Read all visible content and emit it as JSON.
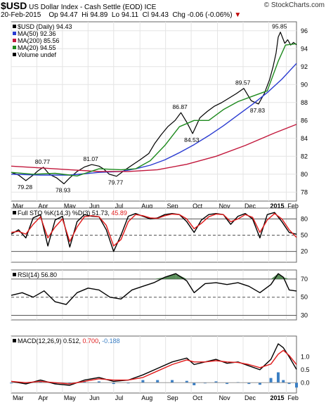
{
  "header": {
    "symbol": "$USD",
    "title": "US Dollar Index - Cash Settle (EOD)",
    "exchange": "ICE",
    "date": "20-Feb-2015",
    "op": "Op 94.47",
    "hi": "Hi 94.89",
    "lo": "Lo 94.11",
    "cl": "Cl 94.43",
    "chg": "Chg -0.06 (-0.06%)",
    "watermark": "© StockCharts.com"
  },
  "colors": {
    "price": "#000000",
    "ma50": "#2a3bd1",
    "ma200": "#c2183c",
    "ma20": "#1e8a1e",
    "sto_k": "#000000",
    "sto_d": "#e01a1a",
    "rsi": "#000000",
    "rsi_fill": "#3e7b3e",
    "macd": "#000000",
    "signal": "#e01a1a",
    "hist": "#3b7fc4",
    "arrow_down": "#c00000"
  },
  "chart_data": [
    {
      "type": "line",
      "panel": "price",
      "legend": [
        "$USD (Daily) 94.43",
        "MA(50) 92.36",
        "MA(200) 85.56",
        "MA(20) 94.55",
        "Volume undef"
      ],
      "x_ticks": [
        "Mar",
        "Apr",
        "May",
        "Jun",
        "Jul",
        "Aug",
        "Sep",
        "Oct",
        "Nov",
        "Dec",
        "2015",
        "Feb"
      ],
      "ylim": [
        77,
        97
      ],
      "y_ticks": [
        78,
        80,
        82,
        84,
        86,
        88,
        90,
        92,
        94,
        96
      ],
      "grid": true,
      "series": [
        {
          "name": "$USD (Daily)",
          "x": [
            0,
            10,
            20,
            30,
            37,
            44,
            52,
            62,
            72,
            80,
            90,
            100,
            110,
            120,
            126,
            134,
            144,
            156,
            165,
            176,
            188,
            196,
            205,
            214,
            224,
            232,
            240,
            248,
            258,
            268,
            278,
            288,
            298,
            308,
            318,
            328,
            338,
            346,
            353,
            358,
            362,
            365,
            368,
            374,
            378,
            382,
            386,
            390
          ],
          "y": [
            80.2,
            79.9,
            79.28,
            79.9,
            80.4,
            80.77,
            80.0,
            79.6,
            78.93,
            79.6,
            80.3,
            80.8,
            81.07,
            80.9,
            80.6,
            80.0,
            79.77,
            80.5,
            81.0,
            81.6,
            82.3,
            83.4,
            84.4,
            85.3,
            86.0,
            86.87,
            85.8,
            84.53,
            86.3,
            87.0,
            87.6,
            88.0,
            88.5,
            89.0,
            89.57,
            88.2,
            87.83,
            89.0,
            90.5,
            92.0,
            93.5,
            95.3,
            95.85,
            94.6,
            95.0,
            94.4,
            94.7,
            94.43
          ]
        },
        {
          "name": "MA(50)",
          "x": [
            0,
            40,
            80,
            120,
            150,
            170,
            190,
            210,
            230,
            250,
            270,
            290,
            310,
            330,
            350,
            370,
            390
          ],
          "y": [
            80.0,
            79.9,
            79.9,
            80.2,
            80.3,
            80.6,
            81.0,
            81.6,
            82.4,
            83.3,
            84.3,
            85.4,
            86.6,
            87.8,
            89.1,
            90.6,
            92.36
          ]
        },
        {
          "name": "MA(200)",
          "x": [
            0,
            40,
            80,
            120,
            160,
            200,
            240,
            280,
            320,
            360,
            390
          ],
          "y": [
            80.9,
            80.7,
            80.5,
            80.3,
            80.3,
            80.5,
            81.1,
            82.0,
            83.2,
            84.6,
            85.56
          ]
        },
        {
          "name": "MA(20)",
          "x": [
            0,
            30,
            60,
            90,
            120,
            150,
            170,
            190,
            210,
            230,
            250,
            270,
            290,
            310,
            330,
            350,
            365,
            375,
            390
          ],
          "y": [
            80.2,
            80.0,
            80.1,
            79.8,
            80.6,
            80.5,
            80.6,
            81.5,
            83.2,
            85.3,
            86.0,
            86.0,
            87.2,
            88.1,
            88.7,
            89.3,
            92.6,
            94.4,
            94.55
          ]
        }
      ],
      "annotations": [
        {
          "text": "80.77",
          "x": 44,
          "y": 80.77
        },
        {
          "text": "79.28",
          "x": 20,
          "y": 79.28
        },
        {
          "text": "78.93",
          "x": 72,
          "y": 78.93
        },
        {
          "text": "81.07",
          "x": 110,
          "y": 81.07
        },
        {
          "text": "79.77",
          "x": 144,
          "y": 79.77
        },
        {
          "text": "86.87",
          "x": 232,
          "y": 86.87
        },
        {
          "text": "84.53",
          "x": 248,
          "y": 84.53
        },
        {
          "text": "89.57",
          "x": 318,
          "y": 89.57
        },
        {
          "text": "87.83",
          "x": 338,
          "y": 87.83
        },
        {
          "text": "95.85",
          "x": 368,
          "y": 95.85
        }
      ]
    },
    {
      "type": "line",
      "panel": "sto",
      "legend": [
        "Full STO %K(14,3) %D(3) 51.73, 45.89"
      ],
      "series_labels": [
        "%K(14,3)",
        "%D(3)"
      ],
      "ylim": [
        0,
        100
      ],
      "y_ticks": [
        20,
        50,
        80
      ],
      "reference_lines": [
        20,
        50,
        80
      ],
      "series": [
        {
          "name": "%K",
          "x": [
            0,
            10,
            20,
            30,
            40,
            50,
            60,
            70,
            80,
            90,
            100,
            110,
            120,
            130,
            140,
            150,
            160,
            170,
            180,
            190,
            200,
            210,
            220,
            230,
            240,
            250,
            260,
            270,
            280,
            290,
            300,
            310,
            320,
            330,
            340,
            350,
            360,
            370,
            380,
            390
          ],
          "y": [
            52,
            60,
            45,
            82,
            88,
            30,
            78,
            85,
            28,
            75,
            88,
            85,
            84,
            60,
            20,
            50,
            85,
            90,
            85,
            80,
            82,
            88,
            90,
            88,
            75,
            55,
            78,
            88,
            90,
            88,
            70,
            85,
            90,
            80,
            45,
            88,
            92,
            75,
            55,
            51.73
          ]
        },
        {
          "name": "%D",
          "x": [
            0,
            10,
            20,
            30,
            40,
            50,
            60,
            70,
            80,
            90,
            100,
            110,
            120,
            130,
            140,
            150,
            160,
            170,
            180,
            190,
            200,
            210,
            220,
            230,
            240,
            250,
            260,
            270,
            280,
            290,
            300,
            310,
            320,
            330,
            340,
            350,
            360,
            370,
            380,
            390
          ],
          "y": [
            55,
            57,
            52,
            70,
            84,
            45,
            65,
            80,
            38,
            65,
            84,
            86,
            84,
            68,
            30,
            42,
            75,
            88,
            86,
            82,
            81,
            86,
            89,
            88,
            80,
            62,
            72,
            84,
            89,
            88,
            75,
            80,
            88,
            83,
            55,
            78,
            90,
            80,
            60,
            45.89
          ]
        }
      ]
    },
    {
      "type": "line",
      "panel": "rsi",
      "legend": [
        "RSI(14) 56.80"
      ],
      "ylim": [
        25,
        80
      ],
      "y_ticks": [
        30,
        50,
        70
      ],
      "reference_lines": [
        30,
        50,
        70
      ],
      "series": [
        {
          "name": "RSI(14)",
          "x": [
            0,
            15,
            30,
            45,
            60,
            75,
            90,
            105,
            120,
            135,
            150,
            165,
            180,
            195,
            210,
            225,
            240,
            250,
            265,
            280,
            295,
            310,
            325,
            340,
            355,
            365,
            372,
            380,
            390
          ],
          "y": [
            52,
            55,
            50,
            57,
            45,
            42,
            55,
            60,
            58,
            50,
            48,
            58,
            62,
            66,
            72,
            76,
            68,
            55,
            65,
            66,
            64,
            66,
            62,
            55,
            64,
            76,
            72,
            58,
            56.8
          ]
        }
      ]
    },
    {
      "type": "line",
      "panel": "macd",
      "legend": [
        "MACD(12,26,9) 0.512, 0.700, -0.188"
      ],
      "ylim": [
        -0.4,
        1.8
      ],
      "y_ticks": [
        0.0,
        0.5,
        1.0
      ],
      "series": [
        {
          "name": "MACD",
          "x": [
            0,
            20,
            40,
            60,
            80,
            100,
            120,
            140,
            160,
            180,
            200,
            220,
            240,
            250,
            265,
            280,
            295,
            310,
            325,
            340,
            355,
            365,
            372,
            380,
            390
          ],
          "y": [
            0.05,
            -0.05,
            0.1,
            -0.05,
            -0.1,
            0.1,
            0.2,
            0.05,
            0.1,
            0.3,
            0.55,
            0.8,
            0.95,
            0.7,
            0.8,
            0.9,
            0.75,
            0.8,
            0.65,
            0.5,
            0.9,
            1.5,
            1.35,
            1.0,
            0.512
          ]
        },
        {
          "name": "Signal",
          "x": [
            0,
            20,
            40,
            60,
            80,
            100,
            120,
            140,
            160,
            180,
            200,
            220,
            240,
            250,
            265,
            280,
            295,
            310,
            325,
            340,
            355,
            365,
            372,
            380,
            390
          ],
          "y": [
            0.05,
            0.0,
            0.05,
            0.0,
            -0.05,
            0.05,
            0.15,
            0.1,
            0.1,
            0.2,
            0.45,
            0.7,
            0.88,
            0.8,
            0.8,
            0.85,
            0.8,
            0.78,
            0.7,
            0.58,
            0.72,
            1.1,
            1.25,
            1.05,
            0.7
          ]
        }
      ]
    }
  ]
}
